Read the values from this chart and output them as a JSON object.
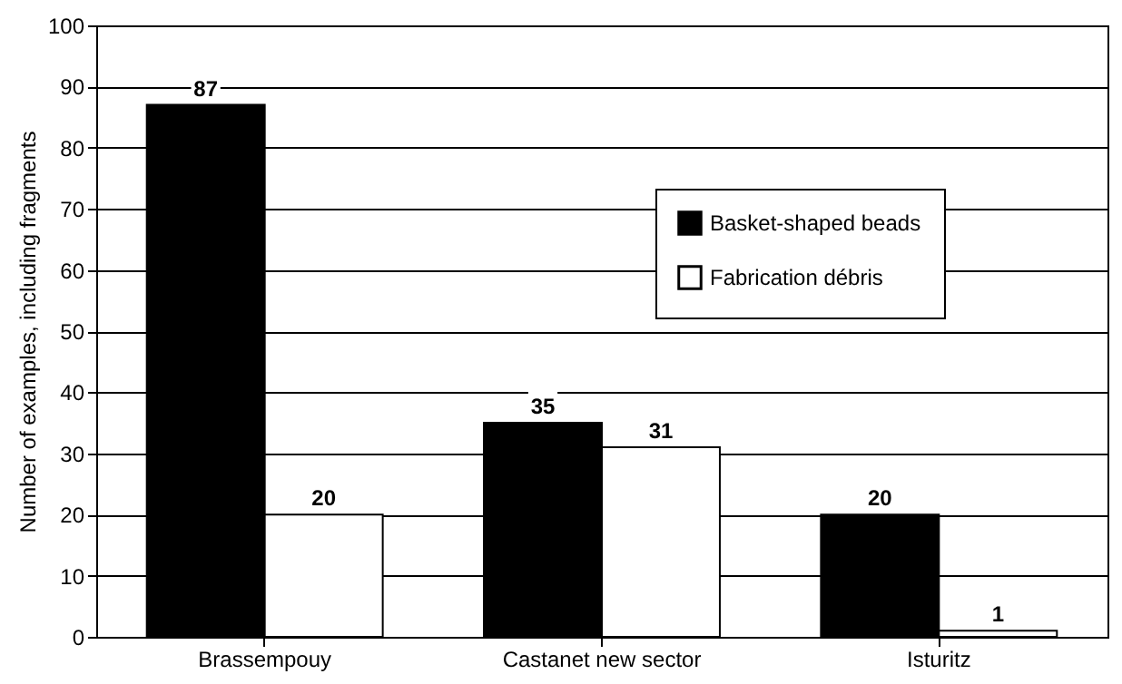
{
  "chart_data": {
    "type": "bar",
    "ylabel": "Number of examples, including fragments",
    "categories": [
      "Brassempouy",
      "Castanet new sector",
      "Isturitz"
    ],
    "series": [
      {
        "name": "Basket-shaped beads",
        "color": "#000000",
        "values": [
          87,
          35,
          20
        ]
      },
      {
        "name": "Fabrication débris",
        "color": "#ffffff",
        "values": [
          20,
          31,
          1
        ]
      }
    ],
    "ylim": [
      0,
      100
    ],
    "yticks": [
      0,
      10,
      20,
      30,
      40,
      50,
      60,
      70,
      80,
      90,
      100
    ],
    "grid": "y",
    "legend": "top right",
    "data_labels": true
  }
}
